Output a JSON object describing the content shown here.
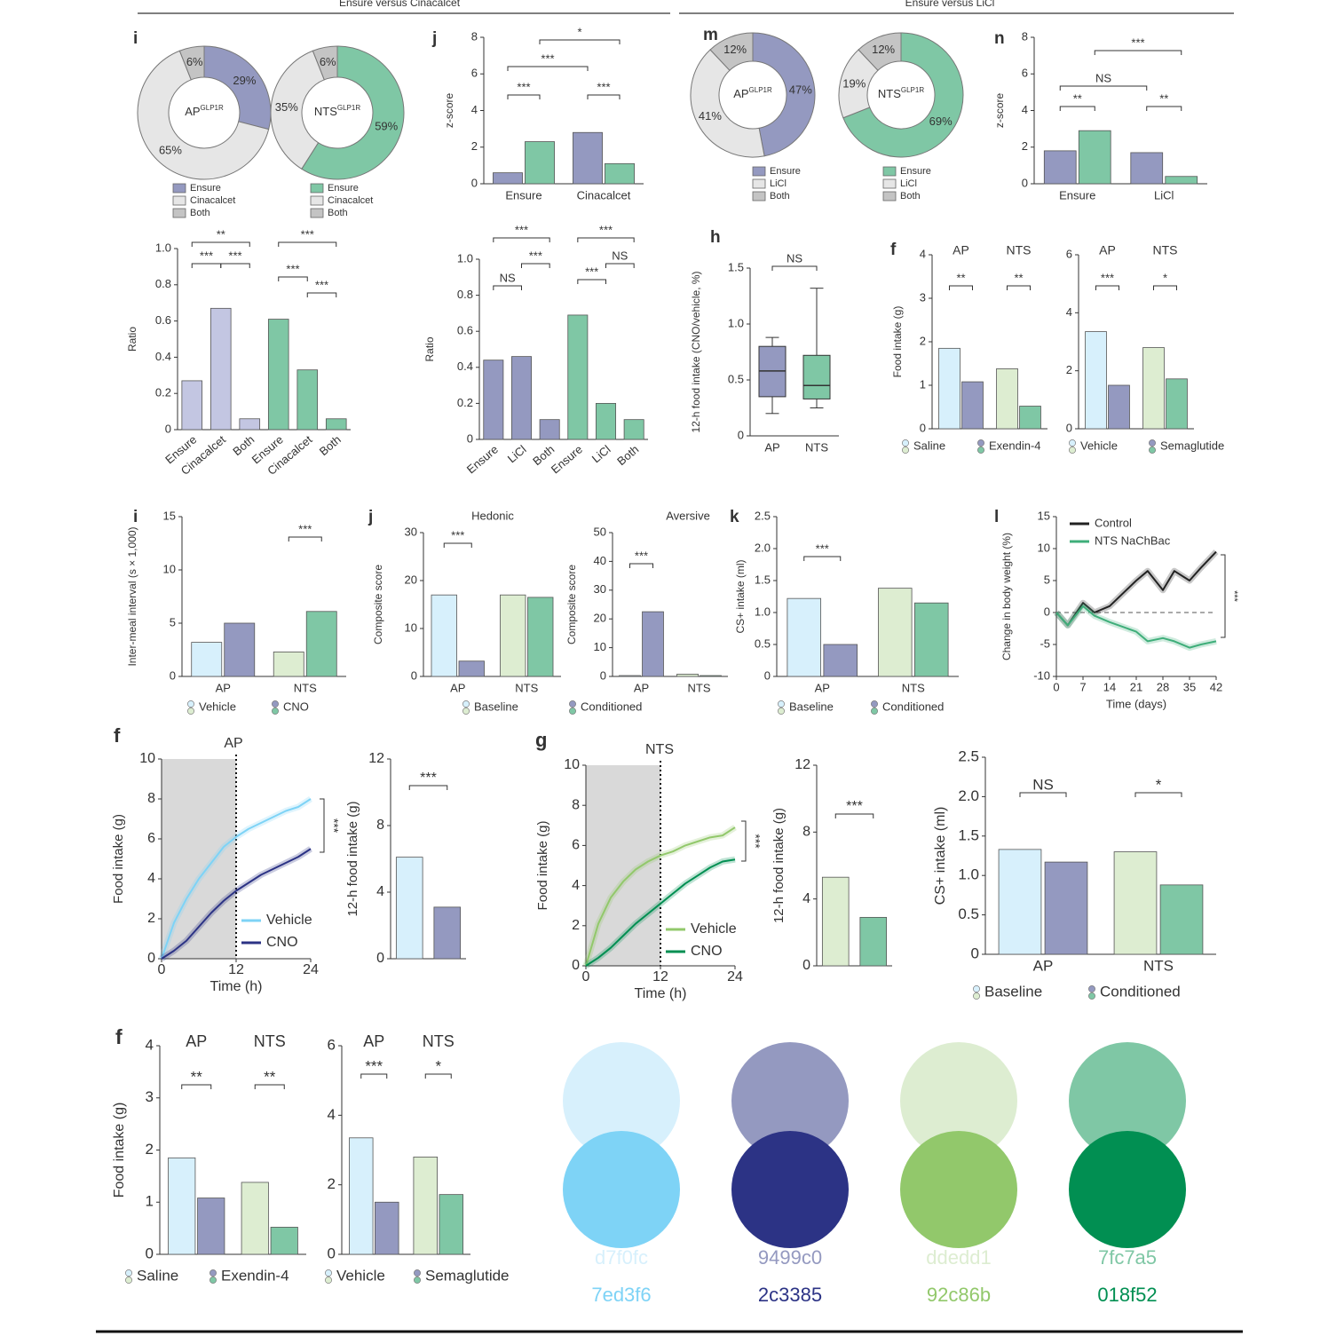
{
  "headers": [
    "Ensure versus Cinacalcet",
    "Ensure versus LiCl"
  ],
  "chart_data": [
    {
      "type": "pie",
      "panel": "i",
      "center_label": "AP",
      "center_sup": "GLP1R",
      "categories": [
        "Ensure",
        "Cinacalcet",
        "Both"
      ],
      "values": [
        29,
        65,
        6
      ],
      "value_labels": [
        "29%",
        "65%",
        "6%"
      ],
      "colors": [
        "#9499c0",
        "#e6e6e6",
        "#c4c4c4"
      ]
    },
    {
      "type": "pie",
      "center_label": "NTS",
      "center_sup": "GLP1R",
      "categories": [
        "Ensure",
        "Cinacalcet",
        "Both"
      ],
      "values": [
        59,
        35,
        6
      ],
      "value_labels": [
        "59%",
        "35%",
        "6%"
      ],
      "colors": [
        "#7fc7a5",
        "#e6e6e6",
        "#c4c4c4"
      ]
    },
    {
      "type": "bar",
      "panel": "j",
      "ylabel": "z-score",
      "ylim": [
        0,
        8
      ],
      "yticks": [
        0,
        2,
        4,
        6,
        8
      ],
      "categories": [
        "Ensure",
        "Cinacalcet"
      ],
      "series": [
        {
          "color": "#9499c0",
          "values": [
            0.6,
            2.8
          ]
        },
        {
          "color": "#7fc7a5",
          "values": [
            2.3,
            1.1
          ]
        }
      ],
      "annotations": [
        "*",
        "***",
        "***",
        "***"
      ]
    },
    {
      "type": "pie",
      "panel": "m",
      "center_label": "AP",
      "center_sup": "GLP1R",
      "categories": [
        "Ensure",
        "LiCl",
        "Both"
      ],
      "values": [
        47,
        41,
        12
      ],
      "value_labels": [
        "47%",
        "41%",
        "12%"
      ],
      "colors": [
        "#9499c0",
        "#e6e6e6",
        "#c4c4c4"
      ]
    },
    {
      "type": "pie",
      "center_label": "NTS",
      "center_sup": "GLP1R",
      "categories": [
        "Ensure",
        "LiCl",
        "Both"
      ],
      "values": [
        69,
        19,
        12
      ],
      "value_labels": [
        "69%",
        "19%",
        "12%"
      ],
      "colors": [
        "#7fc7a5",
        "#e6e6e6",
        "#c4c4c4"
      ]
    },
    {
      "type": "bar",
      "panel": "n",
      "ylabel": "z-score",
      "ylim": [
        0,
        8
      ],
      "yticks": [
        0,
        2,
        4,
        6,
        8
      ],
      "categories": [
        "Ensure",
        "LiCl"
      ],
      "series": [
        {
          "color": "#9499c0",
          "values": [
            1.8,
            1.7
          ]
        },
        {
          "color": "#7fc7a5",
          "values": [
            2.9,
            0.4
          ]
        }
      ],
      "annotations": [
        "***",
        "NS",
        "**",
        "**"
      ]
    },
    {
      "type": "bar",
      "ylabel": "Ratio",
      "ylim": [
        0,
        1
      ],
      "yticks": [
        0,
        0.2,
        0.4,
        0.6,
        0.8,
        {
          "value": 1,
          "label": "1.0"
        }
      ],
      "categories": [
        "Ensure",
        "Cinacalcet",
        "Both",
        "Ensure",
        "Cinacalcet",
        "Both"
      ],
      "values": [
        0.27,
        0.67,
        0.06,
        0.61,
        0.33,
        0.06
      ],
      "colors": [
        "#c3c6e2",
        "#c3c6e2",
        "#c3c6e2",
        "#7fc7a5",
        "#7fc7a5",
        "#7fc7a5"
      ],
      "annotations": [
        "**",
        "***",
        "***",
        "***",
        "***",
        "***"
      ]
    },
    {
      "type": "bar",
      "ylabel": "Ratio",
      "ylim": [
        0,
        1
      ],
      "yticks": [
        0,
        0.2,
        0.4,
        0.6,
        0.8,
        {
          "value": 1,
          "label": "1.0"
        }
      ],
      "categories": [
        "Ensure",
        "LiCl",
        "Both",
        "Ensure",
        "LiCl",
        "Both"
      ],
      "values": [
        0.44,
        0.46,
        0.11,
        0.69,
        0.2,
        0.11
      ],
      "colors": [
        "#9499c0",
        "#9499c0",
        "#9499c0",
        "#7fc7a5",
        "#7fc7a5",
        "#7fc7a5"
      ],
      "annotations": [
        "***",
        "NS",
        "***",
        "***",
        "***",
        "NS"
      ]
    },
    {
      "type": "box",
      "panel": "h",
      "ylabel": "12-h food intake (CNO/vehicle, %)",
      "ylim": [
        0,
        1.5
      ],
      "yticks": [
        0,
        0.5,
        {
          "value": 1,
          "label": "1.0"
        },
        1.5
      ],
      "categories": [
        "AP",
        "NTS"
      ],
      "values": [
        [
          0.2,
          0.35,
          0.58,
          0.8,
          0.88
        ],
        [
          0.25,
          0.33,
          0.45,
          0.72,
          1.32
        ]
      ],
      "colors": [
        "#9499c0",
        "#7fc7a5"
      ],
      "annotations": [
        "NS"
      ]
    },
    {
      "type": "bar",
      "panel": "f",
      "ylabel": "Food intake (g)",
      "ylim": [
        0,
        4
      ],
      "yticks": [
        0,
        1,
        2,
        3,
        4
      ],
      "categories": [
        "AP",
        "NTS"
      ],
      "series": [
        {
          "name": "Saline",
          "colors": [
            "#d7f0fc",
            "#ddedd1"
          ],
          "values": [
            1.85,
            1.38
          ]
        },
        {
          "name": "Exendin-4",
          "colors": [
            "#9499c0",
            "#7fc7a5"
          ],
          "values": [
            1.08,
            0.52
          ]
        }
      ],
      "annotations": [
        "**",
        "**"
      ]
    },
    {
      "type": "bar",
      "ylim": [
        0,
        6
      ],
      "yticks": [
        0,
        2,
        4,
        6
      ],
      "categories": [
        "AP",
        "NTS"
      ],
      "series": [
        {
          "name": "Vehicle",
          "colors": [
            "#d7f0fc",
            "#ddedd1"
          ],
          "values": [
            3.35,
            2.8
          ]
        },
        {
          "name": "Semaglutide",
          "colors": [
            "#9499c0",
            "#7fc7a5"
          ],
          "values": [
            1.5,
            1.72
          ]
        }
      ],
      "annotations": [
        "***",
        "*"
      ]
    },
    {
      "type": "bar",
      "panel": "i",
      "ylabel": "Inter-meal interval (s × 1,000)",
      "ylim": [
        0,
        15
      ],
      "yticks": [
        0,
        5,
        10,
        15
      ],
      "categories": [
        "AP",
        "NTS"
      ],
      "series": [
        {
          "name": "Vehicle",
          "colors": [
            "#d7f0fc",
            "#ddedd1"
          ],
          "values": [
            3.2,
            2.3
          ]
        },
        {
          "name": "CNO",
          "colors": [
            "#9499c0",
            "#7fc7a5"
          ],
          "values": [
            5.0,
            6.1
          ]
        }
      ],
      "annotations": [
        "***"
      ]
    },
    {
      "type": "bar",
      "panel": "j",
      "title": "Hedonic",
      "ylabel": "Composite score",
      "ylim": [
        0,
        30
      ],
      "yticks": [
        0,
        10,
        20,
        30
      ],
      "categories": [
        "AP",
        "NTS"
      ],
      "series": [
        {
          "name": "Baseline",
          "colors": [
            "#d7f0fc",
            "#ddedd1"
          ],
          "values": [
            17,
            17
          ]
        },
        {
          "name": "Conditioned",
          "colors": [
            "#9499c0",
            "#7fc7a5"
          ],
          "values": [
            3.2,
            16.5
          ]
        }
      ],
      "annotations": [
        "***"
      ]
    },
    {
      "type": "bar",
      "title": "Aversive",
      "ylabel": "Composite score",
      "ylim": [
        0,
        50
      ],
      "yticks": [
        0,
        10,
        20,
        30,
        40,
        50
      ],
      "categories": [
        "AP",
        "NTS"
      ],
      "series": [
        {
          "colors": [
            "#d7f0fc",
            "#ddedd1"
          ],
          "values": [
            0.3,
            0.8
          ]
        },
        {
          "colors": [
            "#9499c0",
            "#7fc7a5"
          ],
          "values": [
            22.5,
            0.3
          ]
        }
      ],
      "annotations": [
        "***"
      ]
    },
    {
      "type": "bar",
      "panel": "k",
      "ylabel": "CS+ intake (ml)",
      "ylim": [
        0,
        2.5
      ],
      "yticks": [
        0,
        0.5,
        {
          "value": 1,
          "label": "1.0"
        },
        1.5,
        {
          "value": 2,
          "label": "2.0"
        },
        2.5
      ],
      "categories": [
        "AP",
        "NTS"
      ],
      "series": [
        {
          "name": "Baseline",
          "colors": [
            "#d7f0fc",
            "#ddedd1"
          ],
          "values": [
            1.22,
            1.38
          ]
        },
        {
          "name": "Conditioned",
          "colors": [
            "#9499c0",
            "#7fc7a5"
          ],
          "values": [
            0.5,
            1.15
          ]
        }
      ],
      "annotations": [
        "***"
      ]
    },
    {
      "type": "line",
      "panel": "l",
      "ylabel": "Change in body weight (%)",
      "xlabel": "Time (days)",
      "xlim": [
        0,
        42
      ],
      "xticks": [
        0,
        7,
        14,
        21,
        28,
        35,
        42
      ],
      "ylim": [
        -10,
        15
      ],
      "yticks": [
        -10,
        -5,
        0,
        5,
        10,
        15
      ],
      "hline": 0,
      "x": [
        0,
        3,
        7,
        10,
        14,
        21,
        24,
        28,
        31,
        35,
        38,
        42
      ],
      "series": [
        {
          "name": "Control",
          "color": "#222222",
          "values": [
            0,
            -2,
            1.5,
            0,
            1,
            5,
            6.5,
            3.5,
            6.5,
            5,
            7,
            9.5
          ]
        },
        {
          "name": "NTS NaChBac",
          "color": "#3fae7a",
          "values": [
            0,
            -2,
            1,
            -0.5,
            -1.5,
            -3,
            -4.5,
            -4,
            -4.5,
            -5.5,
            -5,
            -4.5
          ]
        }
      ],
      "annotations": [
        "***"
      ]
    },
    {
      "type": "line",
      "panel": "f",
      "title": "AP",
      "ylabel": "Food intake (g)",
      "xlabel": "Time (h)",
      "xlim": [
        0,
        24
      ],
      "xticks": [
        0,
        12,
        24
      ],
      "ylim": [
        0,
        10
      ],
      "yticks": [
        0,
        2,
        4,
        6,
        8,
        10
      ],
      "shade_x": [
        0,
        12
      ],
      "x": [
        0,
        2,
        4,
        6,
        8,
        10,
        12,
        14,
        16,
        18,
        20,
        22,
        24
      ],
      "series": [
        {
          "name": "Vehicle",
          "color": "#7ed3f6",
          "values": [
            0,
            1.8,
            3,
            4,
            4.8,
            5.6,
            6.1,
            6.5,
            6.8,
            7.1,
            7.4,
            7.6,
            8
          ]
        },
        {
          "name": "CNO",
          "color": "#2c3385",
          "values": [
            0,
            0.4,
            0.9,
            1.6,
            2.3,
            2.9,
            3.4,
            3.8,
            4.2,
            4.5,
            4.8,
            5.1,
            5.5
          ]
        }
      ],
      "annotations": [
        "***"
      ]
    },
    {
      "type": "bar",
      "ylabel": "12-h food intake (g)",
      "ylim": [
        0,
        12
      ],
      "yticks": [
        0,
        4,
        8,
        12
      ],
      "values": [
        6.1,
        3.1
      ],
      "colors": [
        "#d7f0fc",
        "#9499c0"
      ],
      "annotations": [
        "***"
      ]
    },
    {
      "type": "line",
      "panel": "g",
      "title": "NTS",
      "ylabel": "Food intake (g)",
      "xlabel": "Time (h)",
      "xlim": [
        0,
        24
      ],
      "xticks": [
        0,
        12,
        24
      ],
      "ylim": [
        0,
        10
      ],
      "yticks": [
        0,
        2,
        4,
        6,
        8,
        10
      ],
      "shade_x": [
        0,
        12
      ],
      "x": [
        0,
        2,
        4,
        6,
        8,
        10,
        12,
        14,
        16,
        18,
        20,
        22,
        24
      ],
      "series": [
        {
          "name": "Vehicle",
          "color": "#92c86b",
          "values": [
            0,
            2.1,
            3.4,
            4.2,
            4.8,
            5.2,
            5.5,
            5.7,
            6,
            6.2,
            6.4,
            6.5,
            6.9
          ]
        },
        {
          "name": "CNO",
          "color": "#018f52",
          "values": [
            0,
            0.4,
            0.9,
            1.5,
            2.1,
            2.6,
            3.1,
            3.6,
            4.1,
            4.5,
            4.9,
            5.2,
            5.3
          ]
        }
      ],
      "annotations": [
        "***"
      ]
    },
    {
      "type": "bar",
      "ylabel": "12-h food intake (g)",
      "ylim": [
        0,
        12
      ],
      "yticks": [
        0,
        4,
        8,
        12
      ],
      "values": [
        5.3,
        2.9
      ],
      "colors": [
        "#ddedd1",
        "#7fc7a5"
      ],
      "annotations": [
        "***"
      ]
    },
    {
      "type": "bar",
      "ylabel": "CS+ intake (ml)",
      "ylim": [
        0,
        2.5
      ],
      "yticks": [
        0,
        0.5,
        {
          "value": 1,
          "label": "1.0"
        },
        1.5,
        {
          "value": 2,
          "label": "2.0"
        },
        2.5
      ],
      "categories": [
        "AP",
        "NTS"
      ],
      "series": [
        {
          "name": "Baseline",
          "colors": [
            "#d7f0fc",
            "#ddedd1"
          ],
          "values": [
            1.33,
            1.3
          ]
        },
        {
          "name": "Conditioned",
          "colors": [
            "#9499c0",
            "#7fc7a5"
          ],
          "values": [
            1.17,
            0.88
          ]
        }
      ],
      "annotations": [
        "NS",
        "*"
      ]
    },
    {
      "type": "bar",
      "panel": "f",
      "ylabel": "Food intake (g)",
      "ylim": [
        0,
        4
      ],
      "yticks": [
        0,
        1,
        2,
        3,
        4
      ],
      "categories": [
        "AP",
        "NTS"
      ],
      "series": [
        {
          "name": "Saline",
          "colors": [
            "#d7f0fc",
            "#ddedd1"
          ],
          "values": [
            1.85,
            1.38
          ]
        },
        {
          "name": "Exendin-4",
          "colors": [
            "#9499c0",
            "#7fc7a5"
          ],
          "values": [
            1.08,
            0.52
          ]
        }
      ],
      "annotations": [
        "**",
        "**"
      ]
    },
    {
      "type": "bar",
      "ylim": [
        0,
        6
      ],
      "yticks": [
        0,
        2,
        4,
        6
      ],
      "categories": [
        "AP",
        "NTS"
      ],
      "series": [
        {
          "name": "Vehicle",
          "colors": [
            "#d7f0fc",
            "#ddedd1"
          ],
          "values": [
            3.35,
            2.8
          ]
        },
        {
          "name": "Semaglutide",
          "colors": [
            "#9499c0",
            "#7fc7a5"
          ],
          "values": [
            1.5,
            1.72
          ]
        }
      ],
      "annotations": [
        "***",
        "*"
      ]
    }
  ],
  "swatches": [
    {
      "color": "#d7f0fc",
      "label": "d7f0fc"
    },
    {
      "color": "#9499c0",
      "label": "9499c0"
    },
    {
      "color": "#ddedd1",
      "label": "ddedd1"
    },
    {
      "color": "#7fc7a5",
      "label": "7fc7a5"
    },
    {
      "color": "#7ed3f6",
      "label": "7ed3f6"
    },
    {
      "color": "#2c3385",
      "label": "2c3385"
    },
    {
      "color": "#92c86b",
      "label": "92c86b"
    },
    {
      "color": "#018f52",
      "label": "018f52"
    }
  ]
}
